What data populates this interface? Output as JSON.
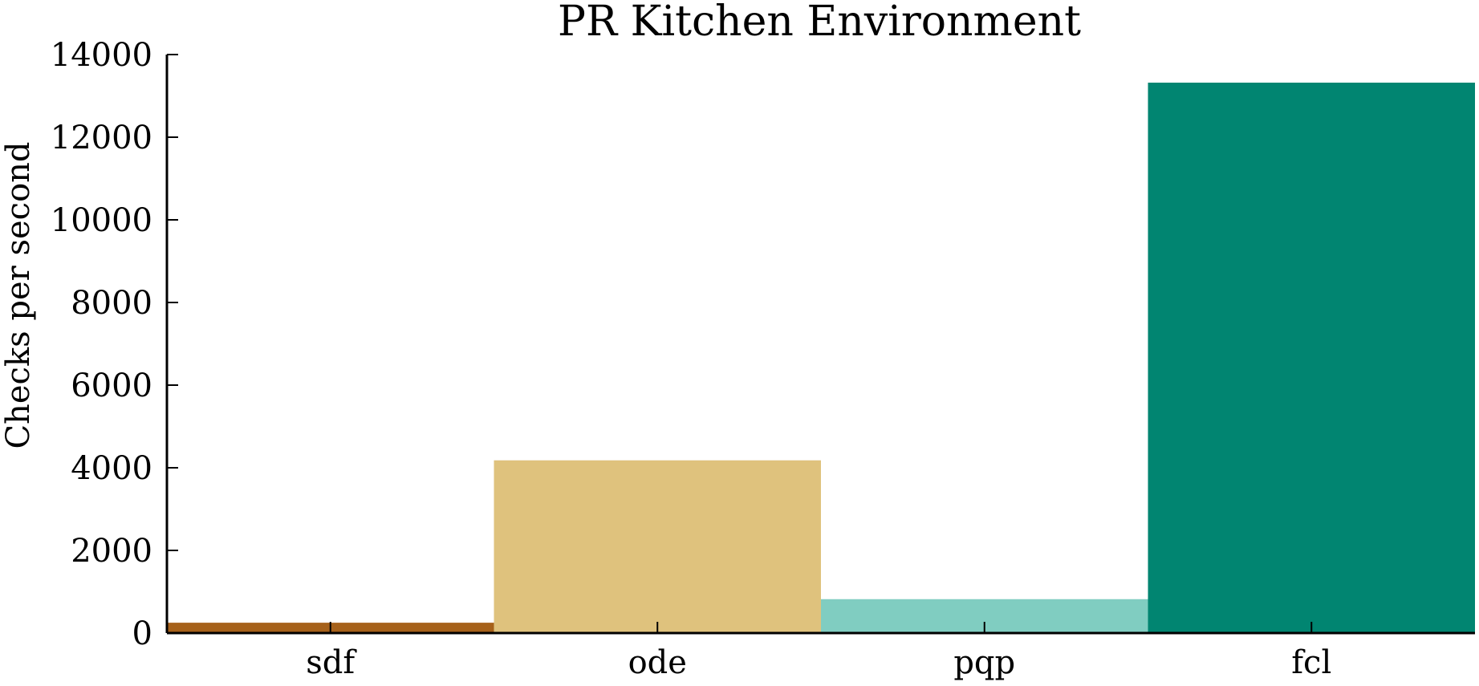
{
  "chart_data": {
    "type": "bar",
    "title": "PR Kitchen Environment",
    "xlabel": "",
    "ylabel": "Checks per second",
    "categories": [
      "sdf",
      "ode",
      "pqp",
      "fcl"
    ],
    "values": [
      250,
      4180,
      820,
      13320
    ],
    "colors": [
      "#a6611a",
      "#dfc27d",
      "#80cdc1",
      "#018571"
    ],
    "ylim": [
      0,
      14000
    ],
    "yticks": [
      0,
      2000,
      4000,
      6000,
      8000,
      10000,
      12000,
      14000
    ],
    "ytick_labels": [
      "0",
      "2000",
      "4000",
      "6000",
      "8000",
      "10000",
      "12000",
      "14000"
    ],
    "grid": false,
    "legend": "none"
  }
}
